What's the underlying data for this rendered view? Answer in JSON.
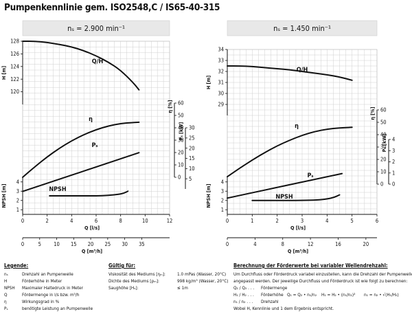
{
  "title": "Pumpenkennlinie gem. ISO2548,C / IS65-40-315",
  "chart_data": [
    {
      "type": "line",
      "header": "n_s = 2.900 min⁻¹",
      "header_text": "nₛ = 2.900 min⁻¹",
      "x": {
        "label": "Q [l/s]",
        "lim": [
          0,
          12
        ],
        "ticks": [
          0,
          2,
          4,
          6,
          8,
          10,
          12
        ]
      },
      "x2": {
        "label": "Q [m³/h]",
        "lim": [
          0,
          43.2
        ],
        "ticks": [
          0,
          5,
          10,
          15,
          20,
          25,
          30,
          35
        ]
      },
      "panels": [
        {
          "name": "H",
          "label": "H [m]",
          "lim": [
            118,
            128
          ],
          "ticks": [
            120,
            122,
            124,
            126,
            128
          ]
        },
        {
          "name": "eta",
          "label": "η [%]",
          "lim": [
            0,
            60
          ],
          "ticks": [
            0,
            10,
            20,
            30,
            40,
            50,
            60
          ]
        },
        {
          "name": "P",
          "label": "Pₛ [kW]",
          "lim": [
            0,
            30
          ],
          "ticks": [
            5,
            10,
            15,
            20,
            25,
            30
          ]
        },
        {
          "name": "NPSH",
          "label": "NPSH [m]",
          "lim": [
            0.5,
            4.5
          ],
          "ticks": [
            1,
            2,
            3,
            4
          ]
        }
      ],
      "series": [
        {
          "name": "Q/H",
          "panel": "H",
          "x": [
            0,
            1,
            2,
            3,
            4,
            5,
            6,
            7,
            8,
            9,
            9.5
          ],
          "y": [
            128,
            128,
            127.8,
            127.5,
            127.1,
            126.5,
            125.7,
            124.7,
            123.4,
            121.5,
            120.3
          ]
        },
        {
          "name": "η",
          "panel": "eta",
          "x": [
            0,
            1,
            2,
            3,
            4,
            5,
            6,
            7,
            8,
            9,
            9.5
          ],
          "y": [
            0,
            8.5,
            16.5,
            23.5,
            29.5,
            34.5,
            38.5,
            41.5,
            43.5,
            44.3,
            44.5
          ]
        },
        {
          "name": "Pₛ",
          "panel": "P",
          "x": [
            0,
            9.5
          ],
          "y": [
            -1.2,
            17.8
          ]
        },
        {
          "name": "NPSH",
          "panel": "NPSH",
          "x": [
            2.2,
            3,
            4,
            5,
            6,
            7,
            7.8,
            8.3,
            8.6
          ],
          "y": [
            2.5,
            2.5,
            2.5,
            2.5,
            2.5,
            2.55,
            2.65,
            2.8,
            3.0
          ]
        }
      ]
    },
    {
      "type": "line",
      "header": "n_s = 1.450 min⁻¹",
      "header_text": "nₛ = 1.450 min⁻¹",
      "x": {
        "label": "Q [l/s]",
        "lim": [
          0,
          6
        ],
        "ticks": [
          0,
          1,
          2,
          3,
          4,
          5,
          6
        ]
      },
      "x2": {
        "label": "Q [m³/h]",
        "lim": [
          0,
          21.6
        ],
        "ticks": [
          0,
          4,
          8,
          12,
          16,
          20
        ]
      },
      "panels": [
        {
          "name": "H",
          "label": "H [m]",
          "lim": [
            28,
            34
          ],
          "ticks": [
            29,
            30,
            31,
            32,
            33,
            34
          ]
        },
        {
          "name": "eta",
          "label": "η [%]",
          "lim": [
            0,
            60
          ],
          "ticks": [
            0,
            10,
            20,
            30,
            40,
            50,
            60
          ]
        },
        {
          "name": "P",
          "label": "Pₛ [kW]",
          "lim": [
            0,
            4
          ],
          "ticks": [
            0,
            1,
            2,
            3,
            4
          ]
        },
        {
          "name": "NPSH",
          "label": "NPSH [m]",
          "lim": [
            0.5,
            4.5
          ],
          "ticks": [
            1,
            2,
            3,
            4
          ]
        }
      ],
      "series": [
        {
          "name": "Q/H",
          "panel": "H",
          "x": [
            0,
            0.5,
            1,
            1.5,
            2,
            2.5,
            3,
            3.5,
            4,
            4.5,
            5
          ],
          "y": [
            32.5,
            32.5,
            32.45,
            32.35,
            32.25,
            32.15,
            32,
            31.85,
            31.7,
            31.5,
            31.2
          ]
        },
        {
          "name": "η",
          "panel": "eta",
          "x": [
            0,
            0.5,
            1,
            1.5,
            2,
            2.5,
            3,
            3.5,
            4,
            4.5,
            5
          ],
          "y": [
            6,
            13,
            19.5,
            25.5,
            31,
            35.5,
            39.5,
            42.5,
            44.5,
            45.5,
            46
          ]
        },
        {
          "name": "Pₛ",
          "panel": "P",
          "x": [
            0,
            4.6
          ],
          "y": [
            -1.25,
            0.95
          ]
        },
        {
          "name": "NPSH",
          "panel": "NPSH",
          "x": [
            1,
            2,
            3,
            3.6,
            4,
            4.3,
            4.5
          ],
          "y": [
            2.0,
            2.0,
            2.0,
            2.05,
            2.15,
            2.35,
            2.6
          ]
        }
      ]
    }
  ],
  "legend": {
    "title": "Legende:",
    "items": [
      {
        "sym": "nₛ",
        "text": "Drehzahl an Pumpenwelle"
      },
      {
        "sym": "H",
        "text": "Förderhöhe in Meter"
      },
      {
        "sym": "NPSH",
        "text": "Maximaler Haltedruck in Meter"
      },
      {
        "sym": "Q",
        "text": "Fördermenge in l/s bzw. m³/h"
      },
      {
        "sym": "η",
        "text": "Wirkungsgrad in %"
      },
      {
        "sym": "Pₛ",
        "text": "benötigte Leistung an Pumpenwelle"
      }
    ]
  },
  "valid": {
    "title": "Gültig für:",
    "items": [
      {
        "k": "Viskosität des Mediums [η_M]:",
        "k_text": "Viskosität des Mediums [ηₘ]:",
        "v": "1.0 mPas (Wasser, 20°C)"
      },
      {
        "k": "Dichte des Mediums [ρ_M]:",
        "k_text": "Dichte des Mediums [ρₘ]:",
        "v": "998 kg/m³ (Wasser, 20°C)"
      },
      {
        "k": "Saughöhe [H_S]:",
        "k_text": "Saughöhe [Hₛ]:",
        "v": "≤ 1m"
      }
    ]
  },
  "calc": {
    "title": "Berechnung der Förderwerte bei variabler Wellendrehzahl:",
    "line1": "Um Durchfluss oder Förderdruck variabel einzustellen, kann die Drehzahl der Pumpenwelle",
    "line2": "angepasst werden. Der jeweilige Durchfluss und Förderdruck ist wie folgt zu berechnen:",
    "defs": [
      {
        "k": "Q₁ / Q₂ . . .",
        "v": "Fördermenge"
      },
      {
        "k": "H₁ / H₂ . . .",
        "v": "Förderhöhe"
      },
      {
        "k": "n₁ / n₂ . . .",
        "v": "Drehzahl"
      }
    ],
    "f1": "Q₁ = Q₂ • n₁/n₂",
    "f2": "H₁ = H₂ • (n₁/n₂)²",
    "f3": "n₁ = n₂ • √(H₁/H₂)",
    "footer": "Wobei H, Kennlinie und 1 dem Ergebnis entspricht."
  }
}
